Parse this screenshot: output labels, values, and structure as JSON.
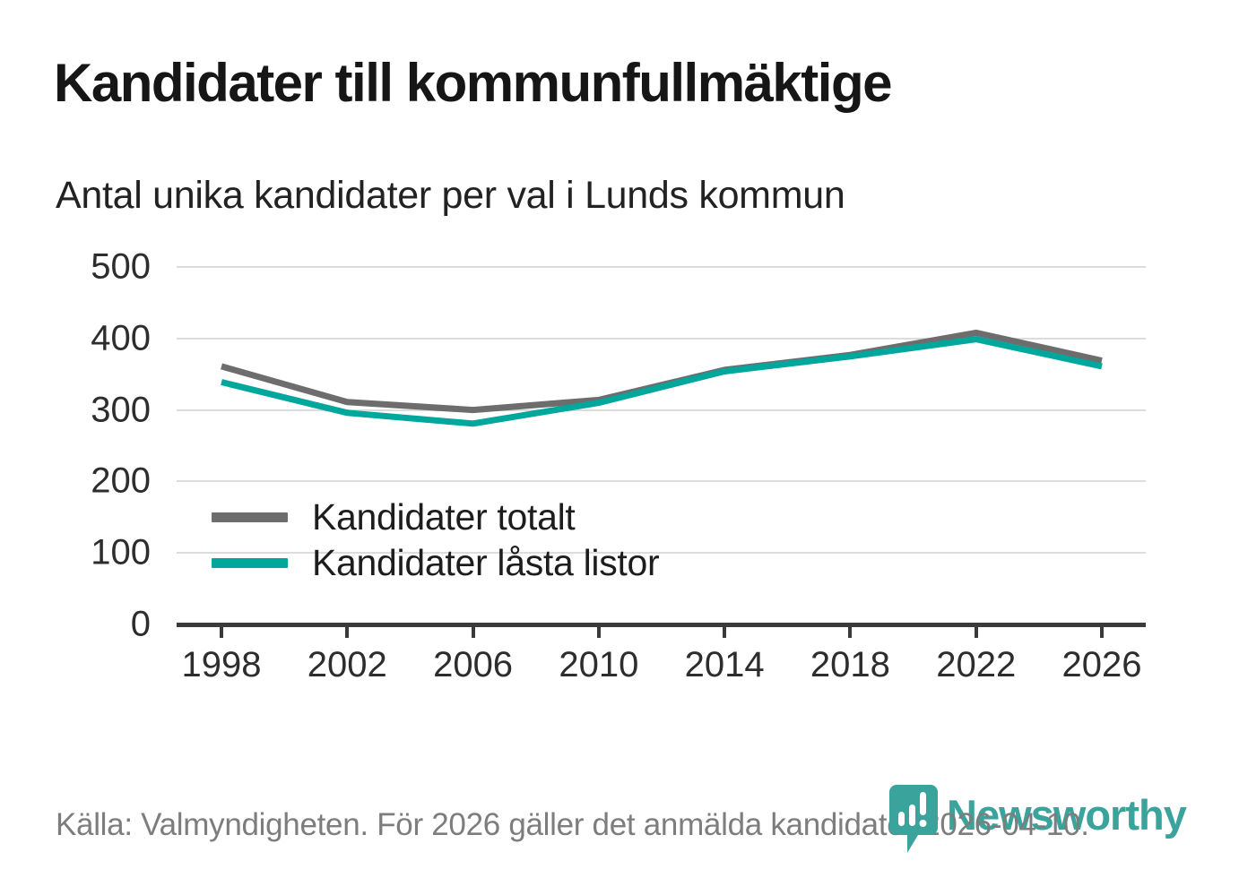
{
  "header": {
    "title": "Kandidater till kommunfullmäktige",
    "subtitle": "Antal unika kandidater per val i Lunds kommun"
  },
  "chart_data": {
    "type": "line",
    "x": [
      1998,
      2002,
      2006,
      2010,
      2014,
      2018,
      2022,
      2026
    ],
    "series": [
      {
        "name": "Kandidater totalt",
        "color": "#6d6d6d",
        "values": [
          361,
          311,
          300,
          314,
          356,
          377,
          408,
          369
        ]
      },
      {
        "name": "Kandidater låsta listor",
        "color": "#00a79c",
        "values": [
          339,
          296,
          281,
          310,
          354,
          375,
          399,
          361
        ]
      }
    ],
    "title": "Kandidater till kommunfullmäktige",
    "subtitle": "Antal unika kandidater per val i Lunds kommun",
    "xlabel": "",
    "ylabel": "",
    "ylim": [
      0,
      500
    ],
    "yticks": [
      0,
      100,
      200,
      300,
      400,
      500
    ],
    "xticks": [
      "1998",
      "2002",
      "2006",
      "2010",
      "2014",
      "2018",
      "2022",
      "2026"
    ],
    "grid": true,
    "legend_position": "inside bottom-left"
  },
  "footer": {
    "source": "Källa: Valmyndigheten. För 2026 gäller det anmälda kandidater 2026-04-10.",
    "brand": "Newsworthy",
    "brand_color": "#3aa39c"
  },
  "colors": {
    "axis": "#3a3a3a",
    "gridline": "#dcdcdc",
    "tick_label": "#2d2d2d",
    "source_text": "#7d7d7d"
  }
}
